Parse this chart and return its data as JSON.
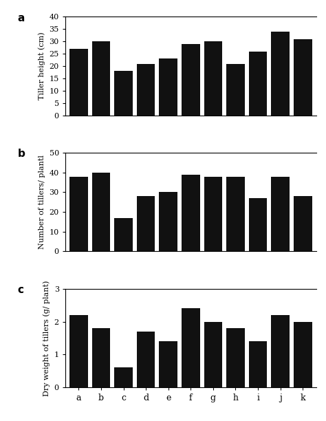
{
  "categories": [
    "a",
    "b",
    "c",
    "d",
    "e",
    "f",
    "g",
    "h",
    "i",
    "j",
    "k"
  ],
  "tiller_height": [
    27,
    30,
    18,
    21,
    23,
    29,
    30,
    21,
    26,
    34,
    31
  ],
  "num_tillers": [
    38,
    40,
    17,
    28,
    30,
    39,
    38,
    38,
    27,
    38,
    28
  ],
  "dry_weight": [
    2.2,
    1.8,
    0.6,
    1.7,
    1.4,
    2.4,
    2.0,
    1.8,
    1.4,
    2.2,
    2.0
  ],
  "bar_color": "#111111",
  "ylabel_a": "Tiller height (cm)",
  "ylabel_b": "Number of tillers/ plantl",
  "ylabel_c": "Dry weight of tillers (g/ plant)",
  "ylim_a": [
    0,
    40
  ],
  "ylim_b": [
    0,
    50
  ],
  "ylim_c": [
    0,
    3
  ],
  "yticks_a": [
    0,
    5,
    10,
    15,
    20,
    25,
    30,
    35,
    40
  ],
  "yticks_b": [
    0,
    10,
    20,
    30,
    40,
    50
  ],
  "yticks_c": [
    0,
    1,
    2,
    3
  ],
  "label_a": "a",
  "label_b": "b",
  "label_c": "c"
}
